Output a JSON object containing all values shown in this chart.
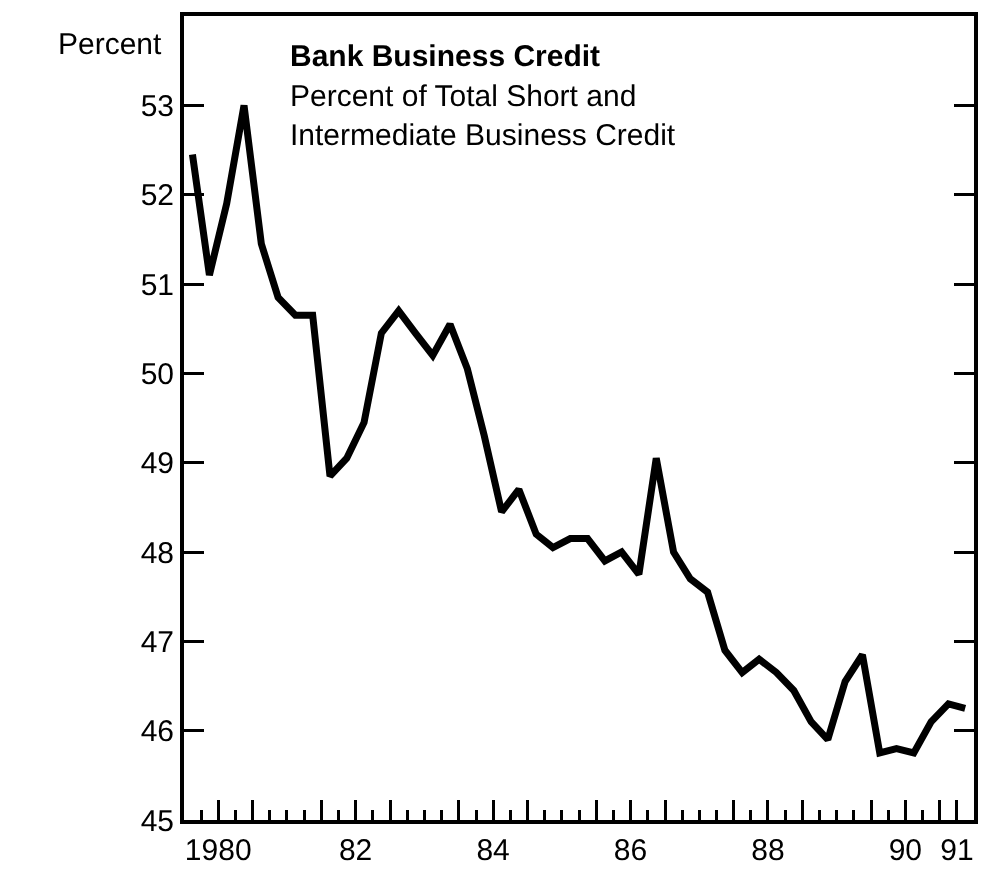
{
  "chart_data": {
    "type": "line",
    "title": "Bank Business Credit",
    "subtitle": "Percent of Total Short and\nIntermediate Business Credit",
    "ylabel": "Percent",
    "x": [
      "1980-02-15",
      "1980-05-15",
      "1980-08-15",
      "1980-11-15",
      "1981-02-15",
      "1981-05-15",
      "1981-08-15",
      "1981-11-15",
      "1982-02-15",
      "1982-05-15",
      "1982-08-15",
      "1982-11-15",
      "1983-02-15",
      "1983-05-15",
      "1983-08-15",
      "1983-11-15",
      "1984-02-15",
      "1984-05-15",
      "1984-08-15",
      "1984-11-15",
      "1985-02-15",
      "1985-05-15",
      "1985-08-15",
      "1985-11-15",
      "1986-02-15",
      "1986-05-15",
      "1986-08-15",
      "1986-11-15",
      "1987-02-15",
      "1987-05-15",
      "1987-08-15",
      "1987-11-15",
      "1988-02-15",
      "1988-05-15",
      "1988-08-15",
      "1988-11-15",
      "1989-02-15",
      "1989-05-15",
      "1989-08-15",
      "1989-11-15",
      "1990-02-15",
      "1990-05-15",
      "1990-08-15",
      "1990-11-15",
      "1991-02-15",
      "1991-05-15"
    ],
    "series": [
      {
        "color": "#000000",
        "values": [
          52.45,
          51.1,
          51.9,
          53.0,
          51.45,
          50.85,
          50.65,
          50.65,
          48.85,
          49.05,
          49.45,
          50.45,
          50.7,
          50.45,
          50.2,
          50.55,
          50.05,
          49.3,
          48.45,
          48.7,
          48.2,
          48.05,
          48.15,
          48.15,
          47.9,
          48.0,
          47.75,
          49.05,
          48.0,
          47.7,
          47.55,
          46.9,
          46.65,
          46.8,
          46.65,
          46.45,
          46.1,
          45.9,
          46.55,
          46.85,
          45.75,
          45.8,
          45.75,
          46.1,
          46.3,
          46.25
        ]
      }
    ],
    "xlim": [
      "1980-01-01",
      "1991-07-01"
    ],
    "xticks": [
      {
        "value": "1980-07-01",
        "label": "1980"
      },
      {
        "value": "1981-01-01",
        "label": null
      },
      {
        "value": "1982-01-01",
        "label": null
      },
      {
        "value": "1982-07-01",
        "label": "82"
      },
      {
        "value": "1983-01-01",
        "label": null
      },
      {
        "value": "1984-01-01",
        "label": null
      },
      {
        "value": "1984-07-01",
        "label": "84"
      },
      {
        "value": "1985-01-01",
        "label": null
      },
      {
        "value": "1986-01-01",
        "label": null
      },
      {
        "value": "1986-07-01",
        "label": "86"
      },
      {
        "value": "1987-01-01",
        "label": null
      },
      {
        "value": "1988-01-01",
        "label": null
      },
      {
        "value": "1988-07-01",
        "label": "88"
      },
      {
        "value": "1989-01-01",
        "label": null
      },
      {
        "value": "1990-01-01",
        "label": null
      },
      {
        "value": "1990-07-01",
        "label": "90"
      },
      {
        "value": "1991-01-01",
        "label": null
      },
      {
        "value": "1991-04-01",
        "label": "91"
      }
    ],
    "ylim": [
      45,
      54
    ],
    "yticks": [
      45,
      46,
      47,
      48,
      49,
      50,
      51,
      52,
      53
    ],
    "grid": false,
    "legend": false,
    "marker": "none",
    "line_style": "solid"
  }
}
